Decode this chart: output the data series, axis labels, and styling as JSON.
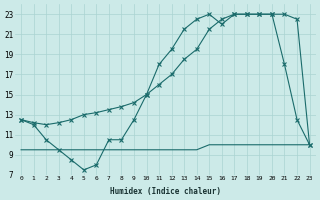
{
  "xlabel": "Humidex (Indice chaleur)",
  "bg_color": "#cceae8",
  "grid_color": "#aad4d2",
  "line_color": "#1a6b6b",
  "line1_x": [
    0,
    1,
    2,
    3,
    4,
    5,
    6,
    7,
    8,
    9,
    10,
    11,
    12,
    13,
    14,
    15,
    16,
    17,
    18,
    19,
    20,
    21,
    22,
    23
  ],
  "line1_y": [
    12.5,
    12.0,
    10.5,
    9.5,
    8.5,
    7.5,
    8.0,
    10.5,
    10.5,
    12.5,
    15.0,
    18.0,
    19.5,
    21.5,
    22.5,
    23.0,
    22.0,
    23.0,
    23.0,
    23.0,
    23.0,
    18.0,
    12.5,
    10.0
  ],
  "line2_x": [
    0,
    1,
    2,
    3,
    4,
    5,
    6,
    7,
    8,
    9,
    10,
    11,
    12,
    13,
    14,
    15,
    16,
    17,
    18,
    19,
    20,
    21,
    22,
    23
  ],
  "line2_y": [
    12.5,
    12.2,
    12.0,
    12.2,
    12.5,
    13.0,
    13.2,
    13.5,
    13.8,
    14.2,
    15.0,
    16.0,
    17.0,
    18.5,
    19.5,
    21.5,
    22.5,
    23.0,
    23.0,
    23.0,
    23.0,
    23.0,
    22.5,
    10.0
  ],
  "line3_x": [
    0,
    1,
    2,
    3,
    4,
    5,
    6,
    7,
    8,
    9,
    10,
    11,
    12,
    13,
    14,
    15,
    16,
    17,
    18,
    19,
    20,
    21,
    22,
    23
  ],
  "line3_y": [
    9.5,
    9.5,
    9.5,
    9.5,
    9.5,
    9.5,
    9.5,
    9.5,
    9.5,
    9.5,
    9.5,
    9.5,
    9.5,
    9.5,
    9.5,
    10.0,
    10.0,
    10.0,
    10.0,
    10.0,
    10.0,
    10.0,
    10.0,
    10.0
  ],
  "xlim": [
    0,
    23
  ],
  "ylim": [
    7,
    24
  ],
  "yticks": [
    7,
    9,
    11,
    13,
    15,
    17,
    19,
    21,
    23
  ],
  "xticks": [
    0,
    1,
    2,
    3,
    4,
    5,
    6,
    7,
    8,
    9,
    10,
    11,
    12,
    13,
    14,
    15,
    16,
    17,
    18,
    19,
    20,
    21,
    22,
    23
  ]
}
